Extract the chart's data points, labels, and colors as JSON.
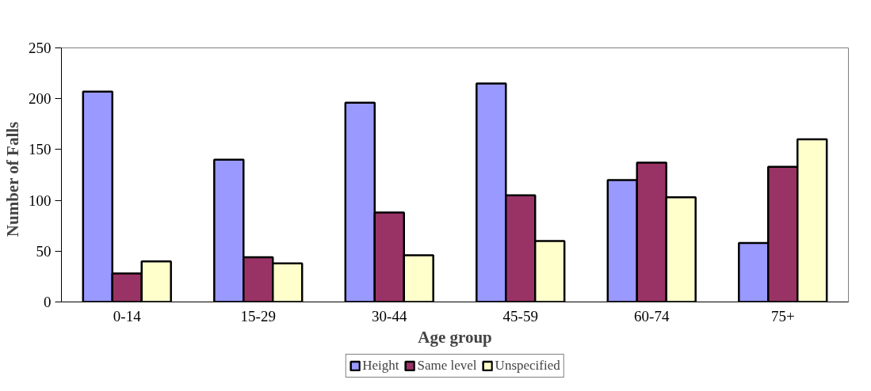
{
  "chart_data": {
    "type": "bar",
    "xlabel": "Age group",
    "ylabel": "Number  of  Falls",
    "categories": [
      "0-14",
      "15-29",
      "30-44",
      "45-59",
      "60-74",
      "75+"
    ],
    "series": [
      {
        "name": "Height",
        "color": "#9999ff",
        "values": [
          207,
          140,
          196,
          215,
          120,
          58
        ]
      },
      {
        "name": "Same level",
        "color": "#993366",
        "values": [
          28,
          44,
          88,
          105,
          137,
          133
        ]
      },
      {
        "name": "Unspecified",
        "color": "#ffffcc",
        "values": [
          40,
          38,
          46,
          60,
          103,
          160
        ]
      }
    ],
    "ylim": [
      0,
      250
    ],
    "yticks": [
      0,
      50,
      100,
      150,
      200,
      250
    ],
    "grid": false,
    "legend": "bottom"
  }
}
